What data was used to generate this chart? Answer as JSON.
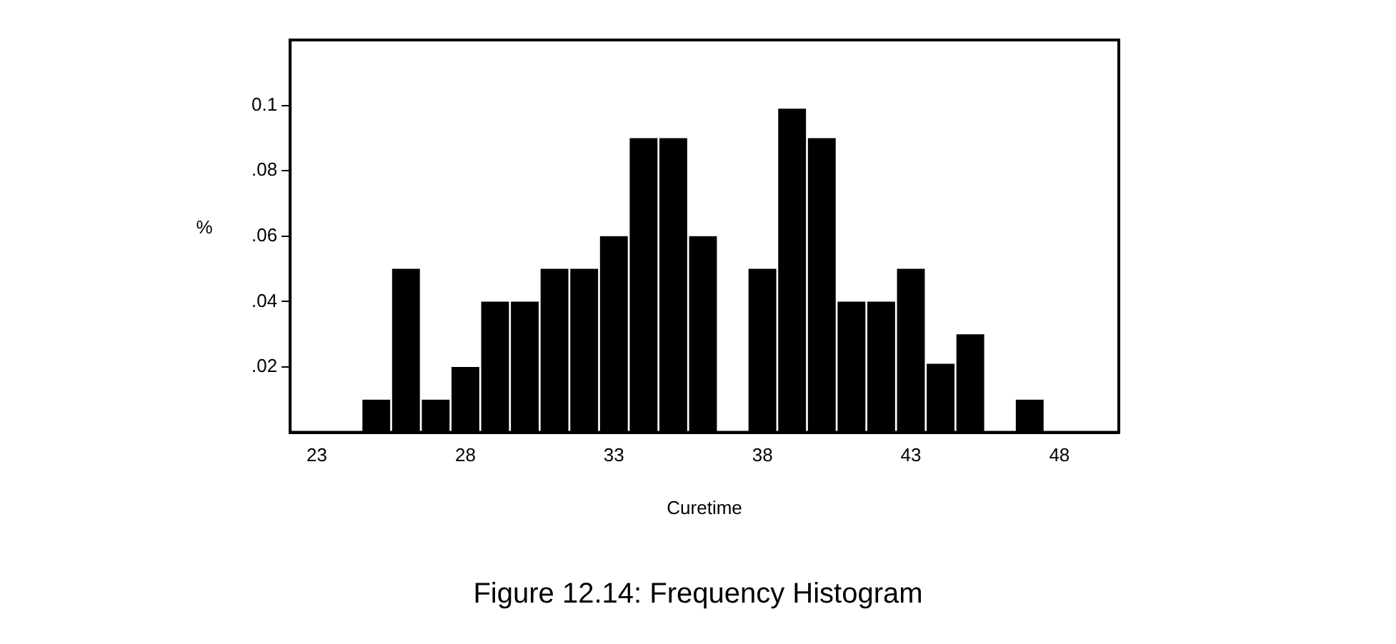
{
  "chart_data": {
    "type": "histogram",
    "xlabel": "Curetime",
    "ylabel": "%",
    "bins": [
      24.5,
      25.5,
      26.5,
      27.5,
      28.5,
      29.5,
      30.5,
      31.5,
      32.5,
      33.5,
      34.5,
      35.5,
      36.5,
      37.5,
      38.5,
      39.5,
      40.5,
      41.5,
      42.5,
      43.5,
      44.5,
      45.5,
      46.5,
      47.5
    ],
    "values": [
      0.01,
      0.05,
      0.01,
      0.02,
      0.04,
      0.04,
      0.05,
      0.05,
      0.06,
      0.09,
      0.09,
      0.06,
      0,
      0.05,
      0.099,
      0.09,
      0.04,
      0.04,
      0.05,
      0.021,
      0.03,
      0,
      0.01
    ],
    "color": "#000000",
    "xlim": [
      22.1,
      50
    ],
    "xticks": [
      23,
      28,
      33,
      38,
      43,
      48
    ],
    "ylim": [
      0,
      0.12
    ],
    "yticks": [
      {
        "value": 0.02,
        "label": ".02"
      },
      {
        "value": 0.04,
        "label": ".04"
      },
      {
        "value": 0.06,
        "label": ".06"
      },
      {
        "value": 0.08,
        "label": ".08"
      },
      {
        "value": 0.1,
        "label": "0.1"
      }
    ],
    "grid": false,
    "legend": false,
    "annotations": [
      "Figure 12.14:  Frequency Histogram"
    ]
  }
}
